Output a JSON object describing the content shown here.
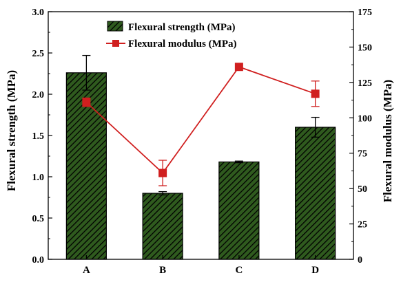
{
  "chart_data": {
    "type": "bar+line",
    "categories": [
      "A",
      "B",
      "C",
      "D"
    ],
    "series": [
      {
        "name": "Flexural strength (MPa)",
        "type": "bar",
        "axis": "left",
        "values": [
          2.26,
          0.8,
          1.18,
          1.6
        ],
        "errors": [
          0.21,
          0.02,
          0.01,
          0.12
        ],
        "color": "#2f5a1e",
        "pattern": "diagonal-hatch"
      },
      {
        "name": "Flexural modulus (MPa)",
        "type": "line",
        "axis": "right",
        "values": [
          111,
          61,
          136,
          117
        ],
        "errors": [
          3,
          9,
          0,
          9
        ],
        "color": "#d01f1f",
        "marker": "square"
      }
    ],
    "ylabel_left": "Flexural strength (MPa)",
    "ylabel_right": "Flexural modulus (MPa)",
    "ylim_left": [
      0.0,
      3.0
    ],
    "ylim_right": [
      0,
      175
    ],
    "yticks_left": [
      "0.0",
      "0.5",
      "1.0",
      "1.5",
      "2.0",
      "2.5",
      "3.0"
    ],
    "yticks_right": [
      "0",
      "25",
      "50",
      "75",
      "100",
      "125",
      "150",
      "175"
    ],
    "legend_position": "top-center",
    "grid": false
  }
}
